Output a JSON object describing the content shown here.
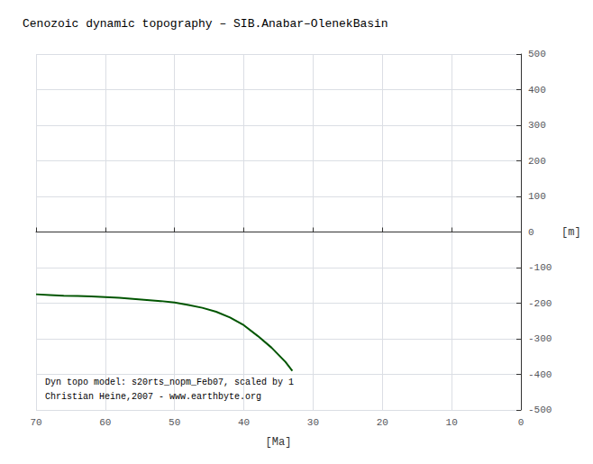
{
  "chart_data": {
    "type": "line",
    "title": "Cenozoic dynamic topography – SIB.Anabar–OlenekBasin",
    "xlabel": "[Ma]",
    "ylabel": "[m]",
    "x": [
      70,
      68,
      66,
      64,
      62,
      60,
      58,
      56,
      54,
      52,
      50,
      48,
      46,
      44,
      42,
      40,
      38,
      36,
      34,
      33
    ],
    "values": [
      -175,
      -177,
      -179,
      -180,
      -181,
      -183,
      -185,
      -188,
      -191,
      -194,
      -198,
      -205,
      -213,
      -224,
      -240,
      -262,
      -292,
      -325,
      -365,
      -390
    ],
    "color": "#005500",
    "xlim": [
      70,
      0
    ],
    "ylim": [
      -500,
      500
    ],
    "xticks": [
      70,
      60,
      50,
      40,
      30,
      20,
      10,
      0
    ],
    "yticks": [
      -500,
      -400,
      -300,
      -200,
      -100,
      0,
      100,
      200,
      300,
      400,
      500
    ],
    "grid": true,
    "annotations": [
      "Dyn topo model: s20rts_nopm_Feb07, scaled by 1",
      "Christian Heine,2007 - www.earthbyte.org"
    ]
  }
}
